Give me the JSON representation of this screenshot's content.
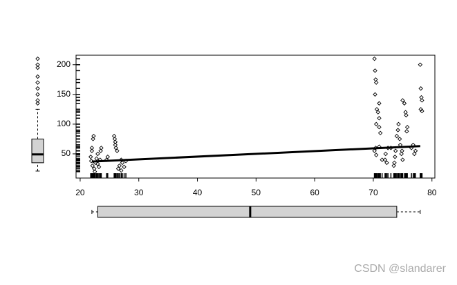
{
  "chart_data": {
    "type": "scatter",
    "xlim": [
      19.3,
      80.5
    ],
    "ylim": [
      9.3,
      216
    ],
    "xticks": [
      20,
      30,
      40,
      50,
      60,
      70,
      80
    ],
    "yticks": [
      50,
      100,
      150,
      200
    ],
    "points": {
      "x": [
        21.8,
        22,
        22,
        22.2,
        22.3,
        21.9,
        22.1,
        22.4,
        22.6,
        22.8,
        23,
        23.2,
        23.4,
        23.5,
        23.6,
        24.5,
        24.7,
        22.5,
        23,
        25.8,
        25.9,
        26,
        26,
        26.1,
        26.5,
        26.7,
        27,
        27.2,
        27.5,
        27.8,
        27,
        26.3,
        70.2,
        70.3,
        70.4,
        70.5,
        70.3,
        70.6,
        70.8,
        71,
        71,
        70.5,
        71,
        71.2,
        70.2,
        70.4,
        70.5,
        71.5,
        71,
        72,
        72.1,
        72.3,
        72.5,
        73.5,
        73.6,
        73.7,
        73.8,
        74,
        74.2,
        74.3,
        74.5,
        74.6,
        74.8,
        75,
        75.3,
        75.5,
        75.6,
        75.8,
        75,
        74.9,
        73,
        75.7,
        76.5,
        76.8,
        77,
        77.2,
        78,
        78.1,
        78.2,
        78.3,
        78.1,
        78.3
      ],
      "y": [
        45,
        55,
        60,
        75,
        80,
        38,
        30,
        25,
        35,
        42,
        50,
        28,
        40,
        55,
        60,
        40,
        45,
        20,
        33,
        80,
        75,
        65,
        70,
        60,
        25,
        30,
        40,
        35,
        28,
        38,
        22,
        55,
        210,
        190,
        175,
        170,
        150,
        125,
        120,
        135,
        110,
        100,
        95,
        85,
        55,
        60,
        48,
        40,
        62,
        40,
        50,
        35,
        60,
        30,
        35,
        45,
        55,
        80,
        90,
        100,
        75,
        65,
        50,
        140,
        135,
        120,
        115,
        95,
        40,
        55,
        60,
        88,
        60,
        65,
        50,
        55,
        200,
        160,
        145,
        140,
        125,
        122
      ]
    },
    "fit": {
      "x": [
        22,
        78
      ],
      "y": [
        37,
        63
      ]
    },
    "x_box": {
      "whisker_low": 22,
      "q1": 23,
      "median": 49,
      "q3": 74,
      "whisker_high": 78
    },
    "y_box": {
      "whisker_low": 21,
      "q1": 35,
      "median": 49,
      "q3": 75,
      "whisker_high": 125,
      "outliers": [
        135,
        140,
        150,
        160,
        170,
        180,
        195,
        200,
        210
      ]
    },
    "color": "#000000",
    "box_color": "#d3d3d3",
    "watermark": "CSDN @slandarer"
  }
}
